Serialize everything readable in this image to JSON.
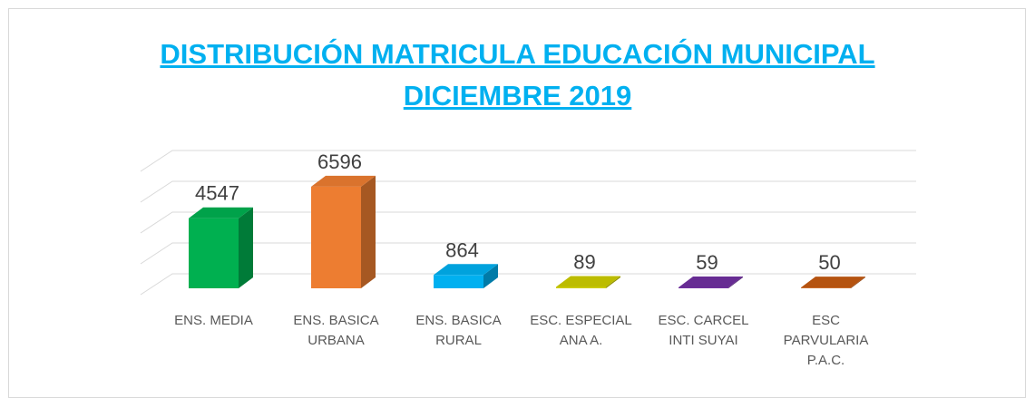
{
  "chart_data": {
    "type": "bar3d",
    "title": [
      "DISTRIBUCIÓN MATRICULA EDUCACIÓN MUNICIPAL",
      "DICIEMBRE 2019"
    ],
    "categories": [
      "ENS. MEDIA",
      "ENS. BASICA URBANA",
      "ENS. BASICA RURAL",
      "ESC. ESPECIAL ANA A.",
      "ESC. CARCEL INTI SUYAI",
      "ESC PARVULARIA P.A.C."
    ],
    "values": [
      4547,
      6596,
      864,
      89,
      59,
      50
    ],
    "colors": [
      "#00b050",
      "#ed7d31",
      "#00b0f0",
      "#cccc00",
      "#7030a0",
      "#c55a11"
    ],
    "ylim": [
      0,
      8000
    ],
    "yticks": [
      0,
      2000,
      4000,
      6000,
      8000
    ],
    "grid": true
  }
}
